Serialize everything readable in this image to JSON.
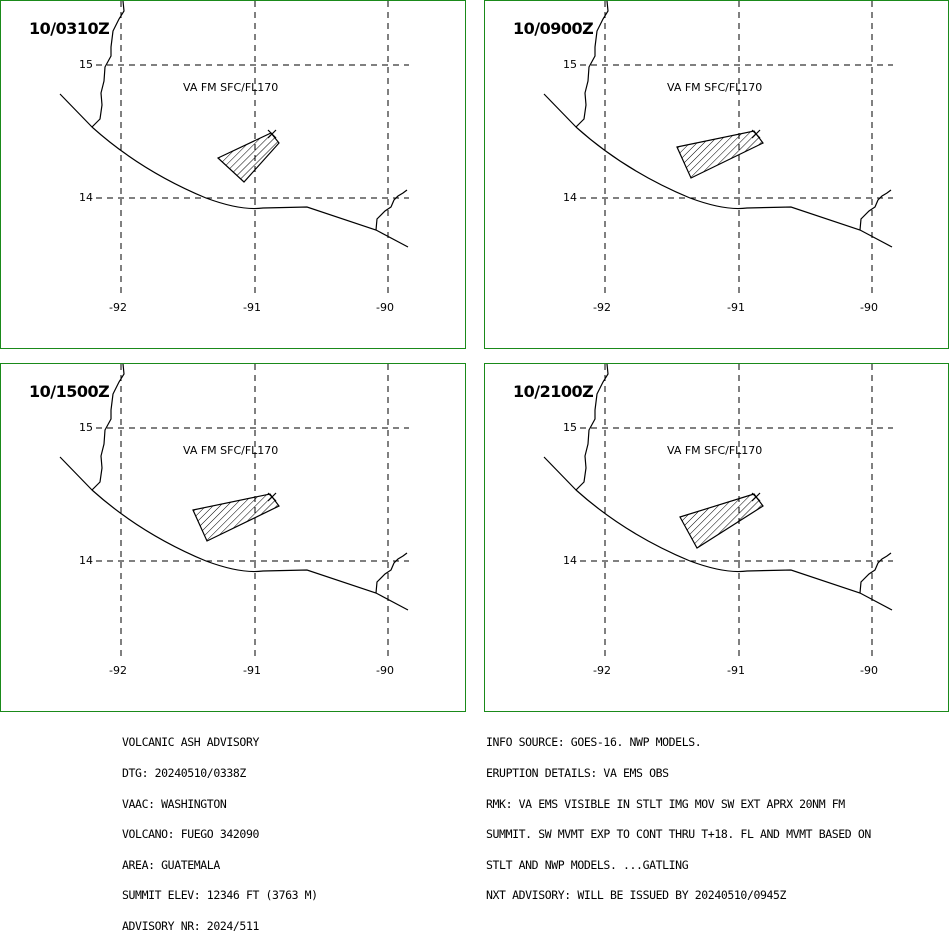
{
  "panels": [
    {
      "time": "10/0310Z",
      "label": "VA FM SFC/FL170",
      "lat_labels": [
        "15",
        "14"
      ],
      "lon_labels": [
        "-92",
        "-91",
        "-90"
      ]
    },
    {
      "time": "10/0900Z",
      "label": "VA FM SFC/FL170",
      "lat_labels": [
        "15",
        "14"
      ],
      "lon_labels": [
        "-92",
        "-91",
        "-90"
      ]
    },
    {
      "time": "10/1500Z",
      "label": "VA FM SFC/FL170",
      "lat_labels": [
        "15",
        "14"
      ],
      "lon_labels": [
        "-92",
        "-91",
        "-90"
      ]
    },
    {
      "time": "10/2100Z",
      "label": "VA FM SFC/FL170",
      "lat_labels": [
        "15",
        "14"
      ],
      "lon_labels": [
        "-92",
        "-91",
        "-90"
      ]
    }
  ],
  "advisory_left": [
    "VOLCANIC ASH ADVISORY",
    "DTG: 20240510/0338Z",
    "VAAC: WASHINGTON",
    "VOLCANO: FUEGO 342090",
    "AREA: GUATEMALA",
    "SUMMIT ELEV: 12346 FT (3763 M)",
    "ADVISORY NR: 2024/511"
  ],
  "advisory_right": [
    "INFO SOURCE: GOES-16. NWP MODELS.",
    "ERUPTION DETAILS: VA EMS OBS",
    "RMK: VA EMS VISIBLE IN STLT IMG MOV SW EXT APRX 20NM FM",
    "SUMMIT. SW MVMT EXP TO CONT THRU T+18. FL AND MVMT BASED ON",
    "STLT AND NWP MODELS. ...GATLING",
    "NXT ADVISORY: WILL BE ISSUED BY 20240510/0945Z"
  ],
  "colors": {
    "panel_border": "#1a8a1a",
    "ink": "#000000"
  }
}
